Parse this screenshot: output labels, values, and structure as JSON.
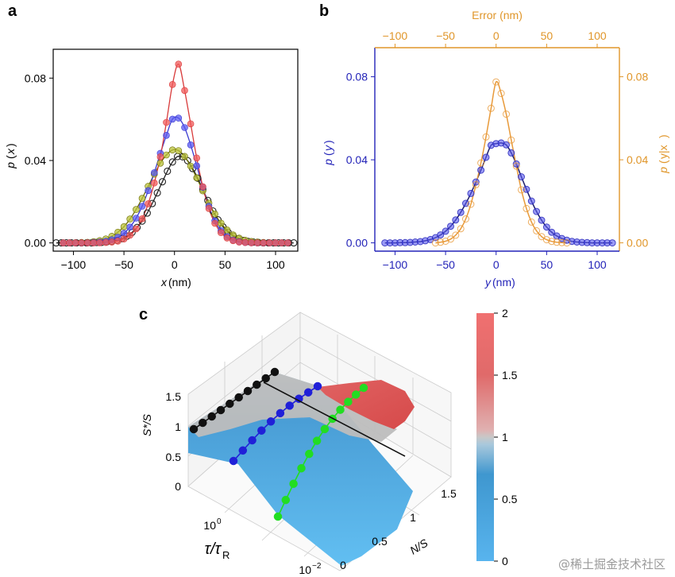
{
  "watermark": "@稀土掘金技术社区",
  "chart_data": [
    {
      "panel": "a",
      "type": "scatter",
      "title": "",
      "xlabel_var": "x",
      "xlabel_unit": " (nm)",
      "ylabel_p": "p",
      "ylabel_var": "x",
      "xlim": [
        -120,
        122
      ],
      "ylim": [
        -0.004,
        0.094
      ],
      "xticks": [
        -100,
        -50,
        0,
        50,
        100
      ],
      "xtick_labels": [
        "−100",
        "−50",
        "0",
        "50",
        "100"
      ],
      "yticks": [
        0.0,
        0.04,
        0.08
      ],
      "ytick_labels": [
        "0.00",
        "0.04",
        "0.08"
      ],
      "grid": false,
      "series": [
        {
          "name": "black",
          "color": "#222222",
          "fill": "none",
          "sigma": 9.5,
          "peak": 0.042,
          "x": [
            -117,
            -112,
            -107,
            -102,
            -97,
            -92,
            -87,
            -82,
            -77,
            -72,
            -67,
            -62,
            -57,
            -52,
            -47,
            -42,
            -37,
            -32,
            -27,
            -22,
            -17,
            -12,
            -7,
            -2,
            3,
            8,
            13,
            18,
            23,
            28,
            33,
            38,
            43,
            48,
            53,
            58,
            63,
            68,
            73,
            78,
            83,
            88,
            93,
            98,
            103,
            108,
            113,
            118
          ],
          "y": [
            0.0,
            0.0,
            0.0,
            0.0,
            0.0,
            0.0,
            0.0,
            0.0,
            0.0002,
            0.0003,
            0.0005,
            0.0008,
            0.0013,
            0.0021,
            0.0033,
            0.0051,
            0.0075,
            0.0106,
            0.0145,
            0.0191,
            0.0243,
            0.0297,
            0.0348,
            0.0393,
            0.0419,
            0.0418,
            0.0399,
            0.0361,
            0.0314,
            0.026,
            0.0206,
            0.0155,
            0.0112,
            0.0078,
            0.0052,
            0.0033,
            0.002,
            0.0012,
            0.0007,
            0.0004,
            0.0002,
            0.0,
            0.0,
            0.0,
            0.0,
            0.0,
            0.0,
            0.0
          ]
        },
        {
          "name": "olive",
          "color": "#6b6b00",
          "fill": "#b9c238",
          "x": [
            -110,
            -104,
            -98,
            -92,
            -86,
            -80,
            -74,
            -68,
            -62,
            -56,
            -50,
            -44,
            -38,
            -32,
            -26,
            -20,
            -14,
            -8,
            -2,
            4,
            10,
            16,
            22,
            28,
            34,
            40,
            46,
            52,
            58,
            64,
            70,
            76,
            82,
            88,
            94,
            100,
            106,
            112
          ],
          "y": [
            0.0,
            0.0,
            0.0001,
            0.0002,
            0.0003,
            0.0006,
            0.0011,
            0.0019,
            0.0032,
            0.0052,
            0.0079,
            0.0116,
            0.0162,
            0.0216,
            0.0275,
            0.0334,
            0.0387,
            0.0427,
            0.0451,
            0.0448,
            0.042,
            0.0373,
            0.0316,
            0.0253,
            0.0193,
            0.014,
            0.0096,
            0.0063,
            0.0039,
            0.0023,
            0.0013,
            0.0007,
            0.0004,
            0.0002,
            0.0001,
            0.0,
            0.0,
            0.0
          ]
        },
        {
          "name": "blue",
          "color": "#3a3ad0",
          "fill": "#5a5af0",
          "x": [
            -110,
            -104,
            -98,
            -92,
            -86,
            -80,
            -74,
            -68,
            -62,
            -56,
            -50,
            -44,
            -38,
            -32,
            -26,
            -20,
            -14,
            -8,
            -2,
            4,
            10,
            16,
            22,
            28,
            34,
            40,
            46,
            52,
            58,
            64,
            70,
            76,
            82,
            88,
            94,
            100,
            106,
            112
          ],
          "y": [
            0.0,
            0.0,
            0.0,
            0.0,
            0.0001,
            0.0002,
            0.0004,
            0.0008,
            0.0015,
            0.0027,
            0.0047,
            0.0077,
            0.012,
            0.0178,
            0.0254,
            0.0341,
            0.0435,
            0.0522,
            0.0601,
            0.0606,
            0.056,
            0.0476,
            0.0374,
            0.027,
            0.0178,
            0.0107,
            0.0059,
            0.003,
            0.0014,
            0.0006,
            0.0002,
            0.0001,
            0.0,
            0.0,
            0.0,
            0.0,
            0.0,
            0.0
          ]
        },
        {
          "name": "red",
          "color": "#d83a3a",
          "fill": "#f05a5a",
          "x": [
            -110,
            -104,
            -98,
            -92,
            -86,
            -80,
            -74,
            -68,
            -62,
            -56,
            -50,
            -44,
            -38,
            -32,
            -26,
            -20,
            -14,
            -8,
            -2,
            4,
            10,
            16,
            22,
            28,
            34,
            40,
            46,
            52,
            58,
            64,
            70,
            76,
            82,
            88,
            94,
            100,
            106,
            112
          ],
          "y": [
            0.0,
            0.0,
            0.0,
            0.0,
            0.0,
            0.0,
            0.0001,
            0.0002,
            0.0004,
            0.0009,
            0.0019,
            0.0037,
            0.0068,
            0.0117,
            0.019,
            0.0291,
            0.0418,
            0.0585,
            0.0769,
            0.0868,
            0.074,
            0.0578,
            0.0412,
            0.0273,
            0.0167,
            0.0095,
            0.005,
            0.0024,
            0.0011,
            0.0004,
            0.0002,
            0.0001,
            0.0,
            0.0,
            0.0,
            0.0,
            0.0,
            0.0
          ]
        }
      ]
    },
    {
      "panel": "b",
      "type": "scatter",
      "xlabel_var": "y",
      "xlabel_unit": " (nm)",
      "ylabel_left_p": "p",
      "ylabel_left_var": "y",
      "ylabel_right_p": "p",
      "ylabel_right_var": "y|x",
      "xlabel_top": "Error (nm)",
      "xlim": [
        -120,
        122
      ],
      "ylim": [
        -0.004,
        0.094
      ],
      "xticks": [
        -100,
        -50,
        0,
        50,
        100
      ],
      "xtick_labels": [
        "−100",
        "−50",
        "0",
        "50",
        "100"
      ],
      "yticks": [
        0.0,
        0.04,
        0.08
      ],
      "ytick_labels": [
        "0.00",
        "0.04",
        "0.08"
      ],
      "xticks_top": [
        -100,
        -50,
        0,
        50,
        100
      ],
      "xtick_labels_top": [
        "−100",
        "−50",
        "0",
        "50",
        "100"
      ],
      "grid": false,
      "series": [
        {
          "name": "p(y)",
          "color": "#2323b8",
          "fill": "#5a5af0",
          "x": [
            -110,
            -105,
            -100,
            -95,
            -90,
            -85,
            -80,
            -75,
            -70,
            -65,
            -60,
            -55,
            -50,
            -45,
            -40,
            -35,
            -30,
            -25,
            -20,
            -15,
            -10,
            -5,
            0,
            5,
            10,
            15,
            20,
            25,
            30,
            35,
            40,
            45,
            50,
            55,
            60,
            65,
            70,
            75,
            80,
            85,
            90,
            95,
            100,
            105,
            110,
            115
          ],
          "y": [
            0.0,
            0.0,
            0.0,
            0.0001,
            0.0001,
            0.0002,
            0.0004,
            0.0006,
            0.001,
            0.0016,
            0.0025,
            0.0038,
            0.0056,
            0.008,
            0.011,
            0.0147,
            0.019,
            0.0238,
            0.0293,
            0.035,
            0.0412,
            0.047,
            0.0478,
            0.0481,
            0.0472,
            0.0433,
            0.038,
            0.0318,
            0.0258,
            0.0201,
            0.0151,
            0.0109,
            0.0076,
            0.0051,
            0.0033,
            0.0021,
            0.0013,
            0.0007,
            0.0004,
            0.0002,
            0.0001,
            0.0,
            0.0,
            0.0,
            0.0,
            0.0
          ]
        },
        {
          "name": "p(y|x)",
          "color": "#e89a3a",
          "fill": "none",
          "x": [
            -60,
            -55,
            -50,
            -45,
            -40,
            -35,
            -30,
            -25,
            -20,
            -15,
            -10,
            -5,
            0,
            5,
            10,
            15,
            20,
            25,
            30,
            35,
            40,
            45,
            50,
            55,
            60,
            65,
            70
          ],
          "y": [
            0.0,
            0.0003,
            0.0008,
            0.0018,
            0.0037,
            0.0068,
            0.0115,
            0.0186,
            0.028,
            0.0385,
            0.051,
            0.0648,
            0.0775,
            0.072,
            0.062,
            0.0495,
            0.037,
            0.0255,
            0.0165,
            0.01,
            0.0058,
            0.003,
            0.0015,
            0.0007,
            0.0003,
            0.0001,
            0.0
          ]
        }
      ]
    },
    {
      "panel": "c",
      "type": "surface",
      "zlabel": "S*/S",
      "xlabel": "N/S",
      "ylabel_tau": "τ/τ",
      "ylabel_sub": "R",
      "zticks": [
        "0",
        "0.5",
        "1",
        "1.5"
      ],
      "xticks": [
        "0",
        "0.5",
        "1",
        "1.5"
      ],
      "yticks": [
        "10",
        "10"
      ],
      "ytick_exps": [
        "−2",
        "0"
      ],
      "colorbar_ticks": [
        "0",
        "0.5",
        "1",
        "1.5",
        "2"
      ],
      "colorbar_range": [
        0,
        2
      ],
      "lines": [
        {
          "name": "black",
          "color": "#111111",
          "z": [
            0.95,
            1.0,
            1.05,
            1.12,
            1.18,
            1.25,
            1.3,
            1.35,
            1.4,
            1.45
          ]
        },
        {
          "name": "blue",
          "color": "#2020d8",
          "z": [
            0.45,
            0.58,
            0.7,
            0.82,
            0.92,
            1.02,
            1.1,
            1.2,
            1.3,
            1.42
          ]
        },
        {
          "name": "green",
          "color": "#22dd22",
          "z": [
            0.05,
            0.12,
            0.2,
            0.3,
            0.42,
            0.55,
            0.7,
            0.85,
            1.0,
            1.15,
            1.3,
            1.45
          ]
        }
      ]
    }
  ]
}
